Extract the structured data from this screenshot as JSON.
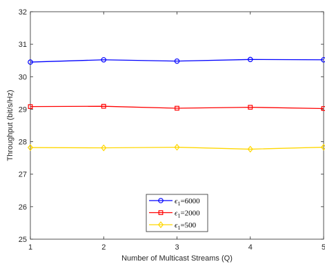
{
  "chart_data": {
    "type": "line",
    "title": "",
    "xlabel": "Number of Multicast Streams (Q)",
    "ylabel": "Throughput (bit/s/Hz)",
    "x": [
      1,
      2,
      3,
      4,
      5
    ],
    "xlim": [
      1,
      5
    ],
    "ylim": [
      25,
      32
    ],
    "xticks": [
      "1",
      "2",
      "3",
      "4",
      "5"
    ],
    "yticks": [
      "25",
      "26",
      "27",
      "28",
      "29",
      "30",
      "31",
      "32"
    ],
    "grid": false,
    "legend_position": "bottom-center",
    "series": [
      {
        "name": "ϵ1=6000",
        "label_main": "ϵ",
        "label_sub": "1",
        "label_rest": "=6000",
        "values": [
          30.45,
          30.52,
          30.48,
          30.53,
          30.52
        ],
        "color": "#0000ff",
        "marker": "circle"
      },
      {
        "name": "ϵ1=2000",
        "label_main": "ϵ",
        "label_sub": "1",
        "label_rest": "=2000",
        "values": [
          29.08,
          29.09,
          29.03,
          29.06,
          29.02
        ],
        "color": "#ff0000",
        "marker": "square"
      },
      {
        "name": "ϵ1=500",
        "label_main": "ϵ",
        "label_sub": "1",
        "label_rest": "=500",
        "values": [
          27.82,
          27.81,
          27.83,
          27.77,
          27.83
        ],
        "color": "#ffd700",
        "marker": "diamond"
      }
    ]
  }
}
